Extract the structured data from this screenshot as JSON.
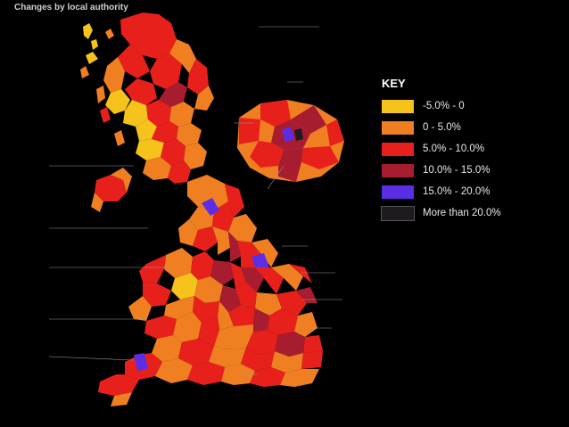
{
  "title": "Changes by local authority",
  "key": {
    "heading": "KEY",
    "items": [
      {
        "label": "-5.0% - 0",
        "color": "#f6c21c"
      },
      {
        "label": "0 - 5.0%",
        "color": "#f07f22"
      },
      {
        "label": "5.0% - 10.0%",
        "color": "#e8201c"
      },
      {
        "label": "10.0% - 15.0%",
        "color": "#a81c30"
      },
      {
        "label": "15.0% - 20.0%",
        "color": "#5b2ee6"
      },
      {
        "label": "More than 20.0%",
        "color": "#1f1a1f"
      }
    ]
  }
}
